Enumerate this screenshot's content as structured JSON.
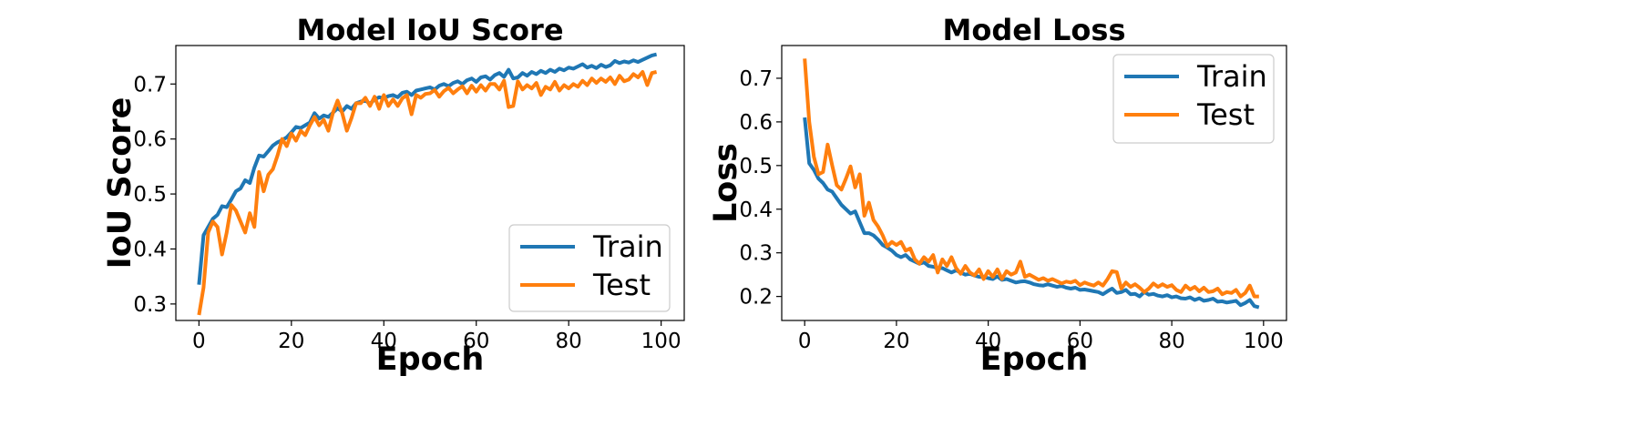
{
  "chart_data": [
    {
      "type": "line",
      "title": "Model IoU Score",
      "xlabel": "Epoch",
      "ylabel": "IoU Score",
      "xlim": [
        -5,
        105
      ],
      "ylim": [
        0.27,
        0.77
      ],
      "xticks": [
        0,
        20,
        40,
        60,
        80,
        100
      ],
      "yticks": [
        0.3,
        0.4,
        0.5,
        0.6,
        0.7
      ],
      "legend_position": "lower-right",
      "grid": false,
      "series": [
        {
          "name": "Train",
          "color": "#1f77b4",
          "x": [
            0,
            1,
            2,
            3,
            4,
            5,
            6,
            7,
            8,
            9,
            10,
            11,
            12,
            13,
            14,
            15,
            16,
            17,
            18,
            19,
            20,
            21,
            22,
            23,
            24,
            25,
            26,
            27,
            28,
            29,
            30,
            31,
            32,
            33,
            34,
            35,
            36,
            37,
            38,
            39,
            40,
            41,
            42,
            43,
            44,
            45,
            46,
            47,
            48,
            49,
            50,
            51,
            52,
            53,
            54,
            55,
            56,
            57,
            58,
            59,
            60,
            61,
            62,
            63,
            64,
            65,
            66,
            67,
            68,
            69,
            70,
            71,
            72,
            73,
            74,
            75,
            76,
            77,
            78,
            79,
            80,
            81,
            82,
            83,
            84,
            85,
            86,
            87,
            88,
            89,
            90,
            91,
            92,
            93,
            94,
            95,
            96,
            97,
            98,
            99
          ],
          "y": [
            0.335,
            0.425,
            0.44,
            0.455,
            0.462,
            0.478,
            0.476,
            0.49,
            0.505,
            0.51,
            0.525,
            0.52,
            0.548,
            0.57,
            0.568,
            0.578,
            0.588,
            0.594,
            0.598,
            0.603,
            0.612,
            0.622,
            0.62,
            0.625,
            0.63,
            0.647,
            0.637,
            0.643,
            0.64,
            0.648,
            0.656,
            0.65,
            0.66,
            0.655,
            0.665,
            0.668,
            0.67,
            0.664,
            0.672,
            0.676,
            0.674,
            0.678,
            0.68,
            0.676,
            0.684,
            0.686,
            0.68,
            0.688,
            0.69,
            0.692,
            0.694,
            0.69,
            0.697,
            0.7,
            0.696,
            0.702,
            0.705,
            0.7,
            0.707,
            0.71,
            0.704,
            0.712,
            0.714,
            0.708,
            0.716,
            0.72,
            0.713,
            0.726,
            0.71,
            0.712,
            0.72,
            0.715,
            0.722,
            0.718,
            0.724,
            0.72,
            0.726,
            0.722,
            0.728,
            0.725,
            0.73,
            0.728,
            0.732,
            0.736,
            0.73,
            0.733,
            0.729,
            0.735,
            0.731,
            0.734,
            0.742,
            0.738,
            0.741,
            0.739,
            0.743,
            0.74,
            0.744,
            0.748,
            0.752,
            0.754
          ]
        },
        {
          "name": "Test",
          "color": "#ff7f0e",
          "x": [
            0,
            1,
            2,
            3,
            4,
            5,
            6,
            7,
            8,
            9,
            10,
            11,
            12,
            13,
            14,
            15,
            16,
            17,
            18,
            19,
            20,
            21,
            22,
            23,
            24,
            25,
            26,
            27,
            28,
            29,
            30,
            31,
            32,
            33,
            34,
            35,
            36,
            37,
            38,
            39,
            40,
            41,
            42,
            43,
            44,
            45,
            46,
            47,
            48,
            49,
            50,
            51,
            52,
            53,
            54,
            55,
            56,
            57,
            58,
            59,
            60,
            61,
            62,
            63,
            64,
            65,
            66,
            67,
            68,
            69,
            70,
            71,
            72,
            73,
            74,
            75,
            76,
            77,
            78,
            79,
            80,
            81,
            82,
            83,
            84,
            85,
            86,
            87,
            88,
            89,
            90,
            91,
            92,
            93,
            94,
            95,
            96,
            97,
            98,
            99
          ],
          "y": [
            0.28,
            0.33,
            0.43,
            0.45,
            0.44,
            0.39,
            0.43,
            0.48,
            0.47,
            0.45,
            0.43,
            0.465,
            0.44,
            0.54,
            0.505,
            0.535,
            0.545,
            0.57,
            0.6,
            0.587,
            0.61,
            0.597,
            0.615,
            0.607,
            0.625,
            0.64,
            0.625,
            0.635,
            0.615,
            0.648,
            0.67,
            0.647,
            0.615,
            0.638,
            0.665,
            0.665,
            0.675,
            0.66,
            0.677,
            0.655,
            0.68,
            0.66,
            0.672,
            0.66,
            0.674,
            0.68,
            0.645,
            0.68,
            0.675,
            0.682,
            0.683,
            0.689,
            0.677,
            0.687,
            0.693,
            0.683,
            0.69,
            0.696,
            0.683,
            0.697,
            0.686,
            0.698,
            0.688,
            0.7,
            0.7,
            0.69,
            0.706,
            0.658,
            0.66,
            0.705,
            0.69,
            0.698,
            0.692,
            0.702,
            0.68,
            0.695,
            0.69,
            0.704,
            0.688,
            0.698,
            0.692,
            0.7,
            0.695,
            0.706,
            0.698,
            0.71,
            0.702,
            0.71,
            0.704,
            0.712,
            0.7,
            0.715,
            0.705,
            0.708,
            0.718,
            0.712,
            0.722,
            0.698,
            0.72,
            0.722
          ]
        }
      ]
    },
    {
      "type": "line",
      "title": "Model Loss",
      "xlabel": "Epoch",
      "ylabel": "Loss",
      "xlim": [
        -5,
        105
      ],
      "ylim": [
        0.145,
        0.775
      ],
      "xticks": [
        0,
        20,
        40,
        60,
        80,
        100
      ],
      "yticks": [
        0.2,
        0.3,
        0.4,
        0.5,
        0.6,
        0.7
      ],
      "legend_position": "upper-right",
      "grid": false,
      "series": [
        {
          "name": "Train",
          "color": "#1f77b4",
          "x": [
            0,
            1,
            2,
            3,
            4,
            5,
            6,
            7,
            8,
            9,
            10,
            11,
            12,
            13,
            14,
            15,
            16,
            17,
            18,
            19,
            20,
            21,
            22,
            23,
            24,
            25,
            26,
            27,
            28,
            29,
            30,
            31,
            32,
            33,
            34,
            35,
            36,
            37,
            38,
            39,
            40,
            41,
            42,
            43,
            44,
            45,
            46,
            47,
            48,
            49,
            50,
            51,
            52,
            53,
            54,
            55,
            56,
            57,
            58,
            59,
            60,
            61,
            62,
            63,
            64,
            65,
            66,
            67,
            68,
            69,
            70,
            71,
            72,
            73,
            74,
            75,
            76,
            77,
            78,
            79,
            80,
            81,
            82,
            83,
            84,
            85,
            86,
            87,
            88,
            89,
            90,
            91,
            92,
            93,
            94,
            95,
            96,
            97,
            98,
            99
          ],
          "y": [
            0.61,
            0.505,
            0.49,
            0.47,
            0.46,
            0.445,
            0.44,
            0.425,
            0.41,
            0.4,
            0.39,
            0.395,
            0.37,
            0.345,
            0.345,
            0.34,
            0.33,
            0.318,
            0.312,
            0.305,
            0.295,
            0.29,
            0.295,
            0.285,
            0.28,
            0.275,
            0.278,
            0.27,
            0.268,
            0.265,
            0.265,
            0.26,
            0.255,
            0.26,
            0.255,
            0.25,
            0.252,
            0.248,
            0.245,
            0.245,
            0.242,
            0.24,
            0.246,
            0.238,
            0.24,
            0.236,
            0.232,
            0.234,
            0.235,
            0.232,
            0.228,
            0.226,
            0.225,
            0.228,
            0.225,
            0.222,
            0.224,
            0.22,
            0.218,
            0.22,
            0.215,
            0.216,
            0.214,
            0.212,
            0.21,
            0.205,
            0.212,
            0.218,
            0.208,
            0.21,
            0.215,
            0.205,
            0.206,
            0.2,
            0.21,
            0.204,
            0.206,
            0.202,
            0.2,
            0.203,
            0.198,
            0.2,
            0.196,
            0.195,
            0.198,
            0.192,
            0.196,
            0.19,
            0.192,
            0.195,
            0.188,
            0.189,
            0.186,
            0.188,
            0.19,
            0.18,
            0.185,
            0.192,
            0.178,
            0.175
          ]
        },
        {
          "name": "Test",
          "color": "#ff7f0e",
          "x": [
            0,
            1,
            2,
            3,
            4,
            5,
            6,
            7,
            8,
            9,
            10,
            11,
            12,
            13,
            14,
            15,
            16,
            17,
            18,
            19,
            20,
            21,
            22,
            23,
            24,
            25,
            26,
            27,
            28,
            29,
            30,
            31,
            32,
            33,
            34,
            35,
            36,
            37,
            38,
            39,
            40,
            41,
            42,
            43,
            44,
            45,
            46,
            47,
            48,
            49,
            50,
            51,
            52,
            53,
            54,
            55,
            56,
            57,
            58,
            59,
            60,
            61,
            62,
            63,
            64,
            65,
            66,
            67,
            68,
            69,
            70,
            71,
            72,
            73,
            74,
            75,
            76,
            77,
            78,
            79,
            80,
            81,
            82,
            83,
            84,
            85,
            86,
            87,
            88,
            89,
            90,
            91,
            92,
            93,
            94,
            95,
            96,
            97,
            98,
            99
          ],
          "y": [
            0.745,
            0.6,
            0.52,
            0.48,
            0.485,
            0.548,
            0.5,
            0.455,
            0.445,
            0.47,
            0.498,
            0.45,
            0.48,
            0.385,
            0.415,
            0.375,
            0.36,
            0.34,
            0.315,
            0.325,
            0.318,
            0.325,
            0.305,
            0.31,
            0.285,
            0.275,
            0.29,
            0.28,
            0.295,
            0.255,
            0.285,
            0.27,
            0.29,
            0.265,
            0.252,
            0.27,
            0.255,
            0.248,
            0.262,
            0.24,
            0.258,
            0.245,
            0.262,
            0.24,
            0.258,
            0.25,
            0.255,
            0.28,
            0.245,
            0.25,
            0.244,
            0.238,
            0.242,
            0.236,
            0.24,
            0.235,
            0.23,
            0.234,
            0.232,
            0.236,
            0.226,
            0.232,
            0.228,
            0.225,
            0.232,
            0.225,
            0.24,
            0.258,
            0.256,
            0.218,
            0.232,
            0.222,
            0.228,
            0.22,
            0.21,
            0.218,
            0.23,
            0.222,
            0.228,
            0.222,
            0.226,
            0.215,
            0.21,
            0.225,
            0.216,
            0.222,
            0.212,
            0.22,
            0.21,
            0.212,
            0.218,
            0.205,
            0.21,
            0.208,
            0.215,
            0.2,
            0.208,
            0.225,
            0.2,
            0.2
          ]
        }
      ]
    }
  ]
}
